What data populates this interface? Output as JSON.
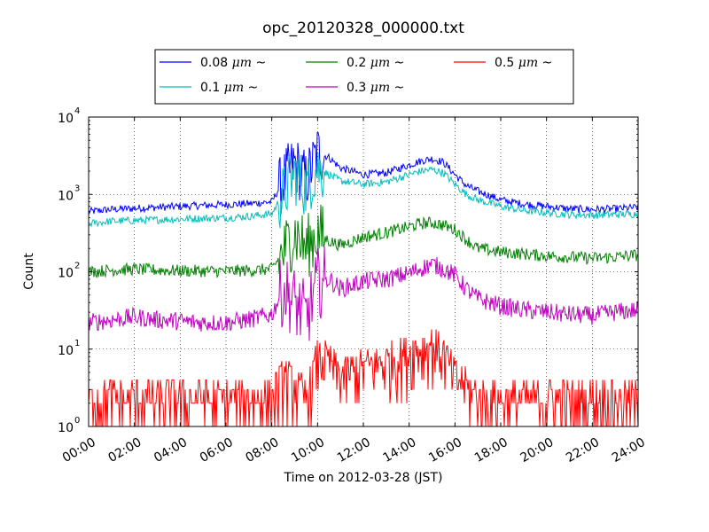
{
  "chart_data": {
    "type": "line",
    "title": "opc_20120328_000000.txt",
    "xlabel": "Time on 2012-03-28 (JST)",
    "ylabel": "Count",
    "yscale": "log",
    "ylim": [
      1,
      10000
    ],
    "xlim": [
      "00:00",
      "24:00"
    ],
    "x_ticks": [
      "00:00",
      "02:00",
      "04:00",
      "06:00",
      "08:00",
      "10:00",
      "12:00",
      "14:00",
      "16:00",
      "18:00",
      "20:00",
      "22:00",
      "24:00"
    ],
    "y_ticks": [
      {
        "value": 1,
        "base": "10",
        "exp": "0"
      },
      {
        "value": 10,
        "base": "10",
        "exp": "1"
      },
      {
        "value": 100,
        "base": "10",
        "exp": "2"
      },
      {
        "value": 1000,
        "base": "10",
        "exp": "3"
      },
      {
        "value": 10000,
        "base": "10",
        "exp": "4"
      }
    ],
    "grid": true,
    "legend_position": "top",
    "x": [
      "00:00",
      "01:00",
      "02:00",
      "03:00",
      "04:00",
      "05:00",
      "06:00",
      "07:00",
      "08:00",
      "08:30",
      "09:00",
      "09:30",
      "10:00",
      "10:30",
      "11:00",
      "12:00",
      "13:00",
      "14:00",
      "14:30",
      "15:00",
      "15:30",
      "16:00",
      "16:30",
      "17:00",
      "18:00",
      "19:00",
      "20:00",
      "21:00",
      "22:00",
      "23:00",
      "24:00"
    ],
    "series": [
      {
        "name": "0.08 μm ~",
        "label_main": "0.08",
        "color": "#0000ff",
        "values": [
          600,
          640,
          660,
          680,
          700,
          720,
          740,
          760,
          800,
          1500,
          2500,
          1500,
          3500,
          3000,
          2200,
          1800,
          1900,
          2400,
          2700,
          2900,
          2600,
          1800,
          1300,
          1100,
          850,
          750,
          700,
          650,
          640,
          650,
          680
        ]
      },
      {
        "name": "0.1 μm ~",
        "label_main": "0.1",
        "color": "#00bfbf",
        "values": [
          420,
          450,
          460,
          470,
          480,
          490,
          500,
          520,
          560,
          1000,
          1800,
          1200,
          2200,
          1800,
          1500,
          1350,
          1450,
          1800,
          2000,
          2100,
          1900,
          1350,
          1000,
          850,
          700,
          620,
          580,
          550,
          540,
          550,
          560
        ]
      },
      {
        "name": "0.2 μm ~",
        "label_main": "0.2",
        "color": "#008000",
        "values": [
          100,
          105,
          108,
          105,
          103,
          102,
          102,
          104,
          108,
          180,
          320,
          200,
          320,
          250,
          220,
          280,
          320,
          380,
          420,
          430,
          400,
          350,
          260,
          200,
          180,
          170,
          160,
          155,
          150,
          155,
          165
        ]
      },
      {
        "name": "0.3 μm ~",
        "label_main": "0.3",
        "color": "#bf00bf",
        "values": [
          22,
          24,
          26,
          24,
          23,
          22,
          22,
          24,
          28,
          60,
          40,
          25,
          70,
          80,
          60,
          75,
          80,
          95,
          110,
          125,
          110,
          90,
          60,
          45,
          36,
          32,
          30,
          28,
          27,
          30,
          32
        ]
      },
      {
        "name": "0.5 μm ~",
        "label_main": "0.5",
        "color": "#ff0000",
        "values": [
          2,
          2,
          2,
          2,
          2,
          2,
          2,
          2,
          2,
          4,
          3,
          2,
          7,
          6,
          4,
          5,
          6,
          8,
          9,
          10,
          8,
          4,
          3,
          2,
          2,
          2,
          2,
          2,
          2,
          2,
          2
        ]
      }
    ],
    "legend_unit": "μm",
    "legend_suffix": "~"
  }
}
